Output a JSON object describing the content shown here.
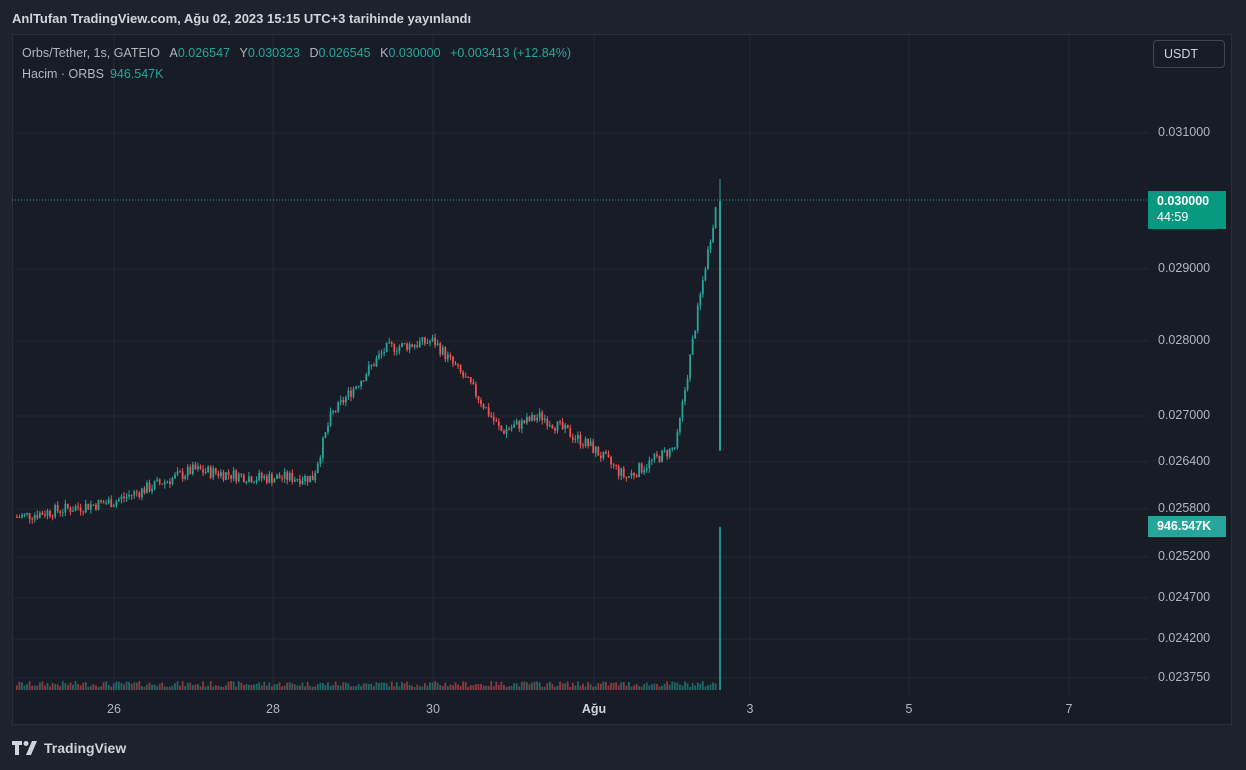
{
  "header": {
    "text": "AnlTufan TradingView.com, Ağu 02, 2023 15:15 UTC+3 tarihinde yayınlandı"
  },
  "legend": {
    "symbol": "Orbs/Tether, 1s, GATEIO",
    "open_label": "A",
    "open": "0.026547",
    "high_label": "Y",
    "high": "0.030323",
    "low_label": "D",
    "low": "0.026545",
    "close_label": "K",
    "close": "0.030000",
    "change": "+0.003413 (+12.84%)"
  },
  "volume_legend": {
    "label": "Hacim · ORBS",
    "value": "946.547K"
  },
  "currency_button": {
    "label": "USDT"
  },
  "price_axis": {
    "labels": [
      "0.031000",
      "0.029000",
      "0.028000",
      "0.027000",
      "0.026400",
      "0.025800",
      "0.025200",
      "0.024700",
      "0.024200",
      "0.023750"
    ]
  },
  "time_axis": {
    "labels": [
      "26",
      "28",
      "30",
      "Ağu",
      "3",
      "5",
      "7"
    ]
  },
  "last_price_tag": {
    "price": "0.030000",
    "countdown": "44:59"
  },
  "volume_tag": {
    "value": "946.547K"
  },
  "footer": {
    "brand": "TradingView"
  },
  "colors": {
    "up": "#26a69a",
    "down": "#ef5350",
    "background": "#181c27",
    "accent": "#089981"
  },
  "chart_data": {
    "type": "candlestick",
    "y_axis_ticks": [
      0.031,
      0.029,
      0.028,
      0.027,
      0.0264,
      0.0258,
      0.0252,
      0.0247,
      0.0242,
      0.02375
    ],
    "price_checkpoints": [
      {
        "date": "Jul 25",
        "price": 0.0257
      },
      {
        "date": "Jul 26",
        "price": 0.0259
      },
      {
        "date": "Jul 27",
        "price": 0.0263
      },
      {
        "date": "Jul 28",
        "price": 0.0262
      },
      {
        "date": "Jul 28 late",
        "price": 0.0262
      },
      {
        "date": "Jul 29",
        "price": 0.027
      },
      {
        "date": "Jul 29 late",
        "price": 0.0279
      },
      {
        "date": "Jul 30",
        "price": 0.028
      },
      {
        "date": "Jul 30 late",
        "price": 0.0274
      },
      {
        "date": "Jul 31",
        "price": 0.0268
      },
      {
        "date": "Jul 31 late",
        "price": 0.027
      },
      {
        "date": "Aug 01",
        "price": 0.0266
      },
      {
        "date": "Aug 01 late",
        "price": 0.0262
      },
      {
        "date": "Aug 02",
        "price": 0.0266
      },
      {
        "date": "Aug 02 15:00",
        "price": 0.03
      }
    ],
    "last_candle": {
      "open": 0.026547,
      "high": 0.030323,
      "low": 0.026545,
      "close": 0.03
    },
    "last_volume": 946547
  }
}
